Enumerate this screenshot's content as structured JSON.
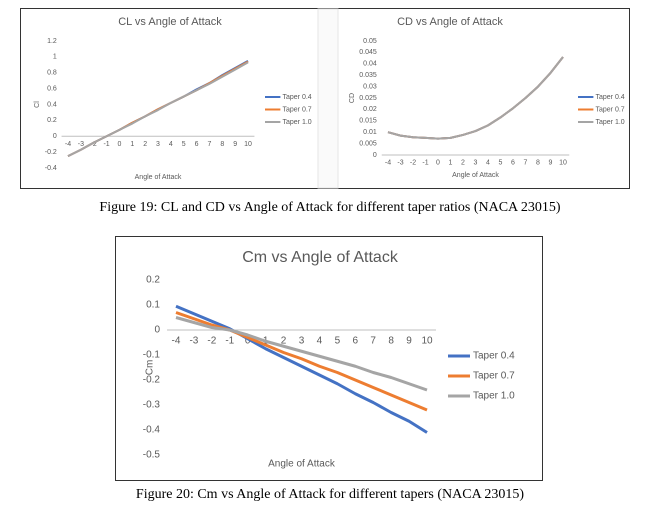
{
  "chart_data": [
    {
      "type": "line",
      "title": "CL vs Angle of Attack",
      "x_label": "Angle of Attack",
      "y_label": "Cl",
      "categories": [
        -4,
        -3,
        -2,
        -1,
        0,
        1,
        2,
        3,
        4,
        5,
        6,
        7,
        8,
        9,
        10
      ],
      "ylim": [
        -0.4,
        1.2
      ],
      "yticks": [
        -0.4,
        -0.2,
        0,
        0.2,
        0.4,
        0.6,
        0.8,
        1,
        1.2
      ],
      "grid": false,
      "legend": "right",
      "series": [
        {
          "name": "Taper 0.4",
          "color": "#4472c4",
          "values": [
            -0.25,
            -0.17,
            -0.08,
            0.0,
            0.08,
            0.17,
            0.25,
            0.34,
            0.42,
            0.5,
            0.59,
            0.67,
            0.77,
            0.86,
            0.95
          ]
        },
        {
          "name": "Taper 0.7",
          "color": "#ed7d31",
          "values": [
            -0.25,
            -0.17,
            -0.08,
            0.0,
            0.08,
            0.17,
            0.25,
            0.34,
            0.42,
            0.5,
            0.58,
            0.67,
            0.76,
            0.85,
            0.94
          ]
        },
        {
          "name": "Taper 1.0",
          "color": "#a5a5a5",
          "values": [
            -0.25,
            -0.17,
            -0.08,
            0.0,
            0.08,
            0.16,
            0.25,
            0.33,
            0.42,
            0.5,
            0.58,
            0.66,
            0.75,
            0.84,
            0.93
          ]
        }
      ]
    },
    {
      "type": "line",
      "title": "CD vs Angle of Attack",
      "x_label": "Angle of Attack",
      "y_label": "CD",
      "categories": [
        -4,
        -3,
        -2,
        -1,
        0,
        1,
        2,
        3,
        4,
        5,
        6,
        7,
        8,
        9,
        10
      ],
      "ylim": [
        0,
        0.05
      ],
      "yticks": [
        0,
        0.005,
        0.01,
        0.015,
        0.02,
        0.025,
        0.03,
        0.035,
        0.04,
        0.045,
        0.05
      ],
      "grid": false,
      "legend": "right",
      "series": [
        {
          "name": "Taper 0.4",
          "color": "#4472c4",
          "values": [
            0.01,
            0.0085,
            0.0078,
            0.0075,
            0.0072,
            0.0075,
            0.0088,
            0.0105,
            0.013,
            0.0165,
            0.0205,
            0.025,
            0.03,
            0.036,
            0.043
          ]
        },
        {
          "name": "Taper 0.7",
          "color": "#ed7d31",
          "values": [
            0.01,
            0.0085,
            0.0078,
            0.0075,
            0.0072,
            0.0075,
            0.0088,
            0.0105,
            0.013,
            0.0165,
            0.0205,
            0.025,
            0.03,
            0.036,
            0.043
          ]
        },
        {
          "name": "Taper 1.0",
          "color": "#a5a5a5",
          "values": [
            0.01,
            0.0085,
            0.0078,
            0.0075,
            0.0072,
            0.0075,
            0.0088,
            0.0105,
            0.013,
            0.0165,
            0.0205,
            0.025,
            0.03,
            0.036,
            0.043
          ]
        }
      ]
    },
    {
      "type": "line",
      "title": "Cm vs Angle of Attack",
      "x_label": "Angle of Attack",
      "y_label": "Cm",
      "categories": [
        -4,
        -3,
        -2,
        -1,
        0,
        1,
        2,
        3,
        4,
        5,
        6,
        7,
        8,
        9,
        10
      ],
      "ylim": [
        -0.5,
        0.2
      ],
      "yticks": [
        -0.5,
        -0.4,
        -0.3,
        -0.2,
        -0.1,
        0,
        0.1,
        0.2
      ],
      "grid": false,
      "legend": "right",
      "series": [
        {
          "name": "Taper 0.4",
          "color": "#4472c4",
          "values": [
            0.095,
            0.065,
            0.035,
            0.005,
            -0.035,
            -0.075,
            -0.11,
            -0.145,
            -0.18,
            -0.215,
            -0.255,
            -0.29,
            -0.33,
            -0.365,
            -0.41
          ]
        },
        {
          "name": "Taper 0.7",
          "color": "#ed7d31",
          "values": [
            0.07,
            0.045,
            0.02,
            0.0,
            -0.03,
            -0.06,
            -0.09,
            -0.115,
            -0.145,
            -0.17,
            -0.2,
            -0.23,
            -0.26,
            -0.29,
            -0.32
          ]
        },
        {
          "name": "Taper 1.0",
          "color": "#a5a5a5",
          "values": [
            0.05,
            0.03,
            0.01,
            0.0,
            -0.02,
            -0.045,
            -0.065,
            -0.085,
            -0.105,
            -0.125,
            -0.145,
            -0.17,
            -0.19,
            -0.215,
            -0.24
          ]
        }
      ]
    }
  ],
  "captions": [
    "Figure 19: CL and CD vs Angle of Attack for different taper ratios (NACA 23015)",
    "Figure 20: Cm vs Angle of Attack for different tapers (NACA 23015)"
  ]
}
